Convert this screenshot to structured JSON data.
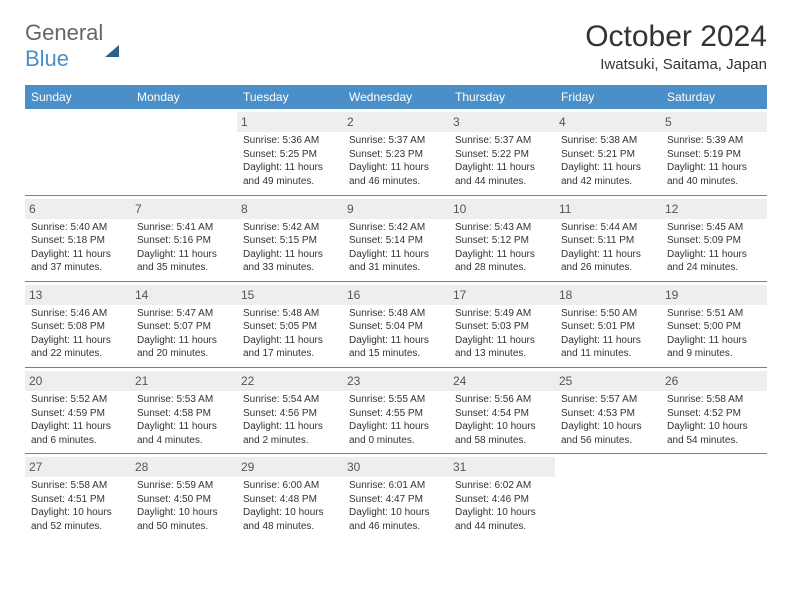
{
  "logo": {
    "text1": "General",
    "text2": "Blue"
  },
  "title": "October 2024",
  "location": "Iwatsuki, Saitama, Japan",
  "colors": {
    "header_bg": "#4a8fc7",
    "header_text": "#ffffff",
    "daynum_bg": "#eeeeee",
    "border": "#4a8fc7"
  },
  "day_headers": [
    "Sunday",
    "Monday",
    "Tuesday",
    "Wednesday",
    "Thursday",
    "Friday",
    "Saturday"
  ],
  "weeks": [
    [
      null,
      null,
      {
        "num": "1",
        "sunrise": "5:36 AM",
        "sunset": "5:25 PM",
        "daylight": "11 hours and 49 minutes."
      },
      {
        "num": "2",
        "sunrise": "5:37 AM",
        "sunset": "5:23 PM",
        "daylight": "11 hours and 46 minutes."
      },
      {
        "num": "3",
        "sunrise": "5:37 AM",
        "sunset": "5:22 PM",
        "daylight": "11 hours and 44 minutes."
      },
      {
        "num": "4",
        "sunrise": "5:38 AM",
        "sunset": "5:21 PM",
        "daylight": "11 hours and 42 minutes."
      },
      {
        "num": "5",
        "sunrise": "5:39 AM",
        "sunset": "5:19 PM",
        "daylight": "11 hours and 40 minutes."
      }
    ],
    [
      {
        "num": "6",
        "sunrise": "5:40 AM",
        "sunset": "5:18 PM",
        "daylight": "11 hours and 37 minutes."
      },
      {
        "num": "7",
        "sunrise": "5:41 AM",
        "sunset": "5:16 PM",
        "daylight": "11 hours and 35 minutes."
      },
      {
        "num": "8",
        "sunrise": "5:42 AM",
        "sunset": "5:15 PM",
        "daylight": "11 hours and 33 minutes."
      },
      {
        "num": "9",
        "sunrise": "5:42 AM",
        "sunset": "5:14 PM",
        "daylight": "11 hours and 31 minutes."
      },
      {
        "num": "10",
        "sunrise": "5:43 AM",
        "sunset": "5:12 PM",
        "daylight": "11 hours and 28 minutes."
      },
      {
        "num": "11",
        "sunrise": "5:44 AM",
        "sunset": "5:11 PM",
        "daylight": "11 hours and 26 minutes."
      },
      {
        "num": "12",
        "sunrise": "5:45 AM",
        "sunset": "5:09 PM",
        "daylight": "11 hours and 24 minutes."
      }
    ],
    [
      {
        "num": "13",
        "sunrise": "5:46 AM",
        "sunset": "5:08 PM",
        "daylight": "11 hours and 22 minutes."
      },
      {
        "num": "14",
        "sunrise": "5:47 AM",
        "sunset": "5:07 PM",
        "daylight": "11 hours and 20 minutes."
      },
      {
        "num": "15",
        "sunrise": "5:48 AM",
        "sunset": "5:05 PM",
        "daylight": "11 hours and 17 minutes."
      },
      {
        "num": "16",
        "sunrise": "5:48 AM",
        "sunset": "5:04 PM",
        "daylight": "11 hours and 15 minutes."
      },
      {
        "num": "17",
        "sunrise": "5:49 AM",
        "sunset": "5:03 PM",
        "daylight": "11 hours and 13 minutes."
      },
      {
        "num": "18",
        "sunrise": "5:50 AM",
        "sunset": "5:01 PM",
        "daylight": "11 hours and 11 minutes."
      },
      {
        "num": "19",
        "sunrise": "5:51 AM",
        "sunset": "5:00 PM",
        "daylight": "11 hours and 9 minutes."
      }
    ],
    [
      {
        "num": "20",
        "sunrise": "5:52 AM",
        "sunset": "4:59 PM",
        "daylight": "11 hours and 6 minutes."
      },
      {
        "num": "21",
        "sunrise": "5:53 AM",
        "sunset": "4:58 PM",
        "daylight": "11 hours and 4 minutes."
      },
      {
        "num": "22",
        "sunrise": "5:54 AM",
        "sunset": "4:56 PM",
        "daylight": "11 hours and 2 minutes."
      },
      {
        "num": "23",
        "sunrise": "5:55 AM",
        "sunset": "4:55 PM",
        "daylight": "11 hours and 0 minutes."
      },
      {
        "num": "24",
        "sunrise": "5:56 AM",
        "sunset": "4:54 PM",
        "daylight": "10 hours and 58 minutes."
      },
      {
        "num": "25",
        "sunrise": "5:57 AM",
        "sunset": "4:53 PM",
        "daylight": "10 hours and 56 minutes."
      },
      {
        "num": "26",
        "sunrise": "5:58 AM",
        "sunset": "4:52 PM",
        "daylight": "10 hours and 54 minutes."
      }
    ],
    [
      {
        "num": "27",
        "sunrise": "5:58 AM",
        "sunset": "4:51 PM",
        "daylight": "10 hours and 52 minutes."
      },
      {
        "num": "28",
        "sunrise": "5:59 AM",
        "sunset": "4:50 PM",
        "daylight": "10 hours and 50 minutes."
      },
      {
        "num": "29",
        "sunrise": "6:00 AM",
        "sunset": "4:48 PM",
        "daylight": "10 hours and 48 minutes."
      },
      {
        "num": "30",
        "sunrise": "6:01 AM",
        "sunset": "4:47 PM",
        "daylight": "10 hours and 46 minutes."
      },
      {
        "num": "31",
        "sunrise": "6:02 AM",
        "sunset": "4:46 PM",
        "daylight": "10 hours and 44 minutes."
      },
      null,
      null
    ]
  ],
  "labels": {
    "sunrise": "Sunrise:",
    "sunset": "Sunset:",
    "daylight": "Daylight:"
  }
}
